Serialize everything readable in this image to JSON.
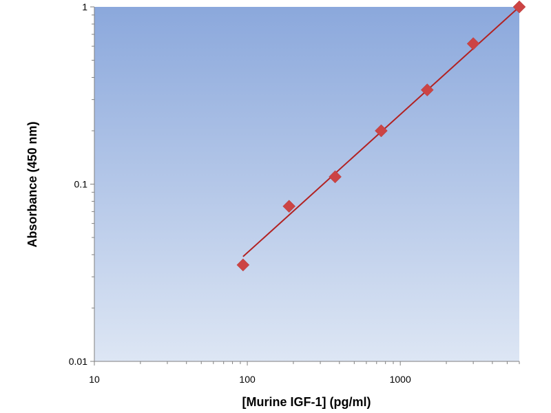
{
  "chart_data": {
    "type": "scatter",
    "title": "",
    "xlabel": "[Murine IGF-1] (pg/ml)",
    "ylabel": "Absorbance (450 nm)",
    "x_scale": "log",
    "y_scale": "log",
    "xlim": [
      10,
      6000
    ],
    "ylim": [
      0.01,
      1
    ],
    "x_ticks": [
      "10",
      "100",
      "1000"
    ],
    "x_tick_values": [
      10,
      100,
      1000
    ],
    "y_ticks": [
      "0.01",
      "0.1",
      "1"
    ],
    "y_tick_values": [
      0.01,
      0.1,
      1
    ],
    "grid": false,
    "legend": "none",
    "background_gradient": [
      "#8ba8dc",
      "#dde6f4"
    ],
    "marker_color": "#cc4444",
    "line_color": "#b22222",
    "series": [
      {
        "marker": "diamond",
        "x": [
          93.75,
          187.5,
          375,
          750,
          1500,
          3000,
          6000
        ],
        "y": [
          0.035,
          0.075,
          0.11,
          0.2,
          0.34,
          0.62,
          1.0
        ]
      }
    ],
    "fit_line": {
      "type": "power",
      "x": [
        93.75,
        6000
      ],
      "y": [
        0.039,
        1.0
      ]
    }
  }
}
